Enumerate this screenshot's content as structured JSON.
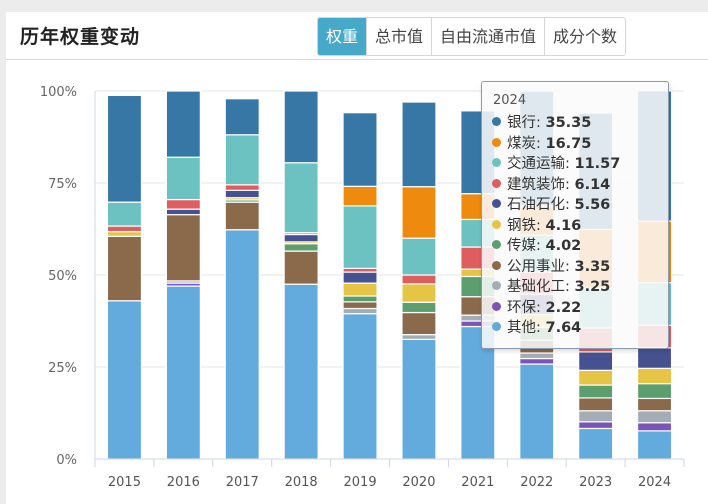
{
  "header": {
    "title": "历年权重变动",
    "tabs": [
      {
        "label": "权重",
        "active": true
      },
      {
        "label": "总市值",
        "active": false
      },
      {
        "label": "自由流通市值",
        "active": false
      },
      {
        "label": "成分个数",
        "active": false
      }
    ]
  },
  "tooltip": {
    "title": "2024",
    "rows": [
      {
        "name": "银行",
        "value": "35.35",
        "color": "#3777a6"
      },
      {
        "name": "煤炭",
        "value": "16.75",
        "color": "#ee8a0e"
      },
      {
        "name": "交通运输",
        "value": "11.57",
        "color": "#6cc2c0"
      },
      {
        "name": "建筑装饰",
        "value": "6.14",
        "color": "#df5c5f"
      },
      {
        "name": "石油石化",
        "value": "5.56",
        "color": "#465190"
      },
      {
        "name": "钢铁",
        "value": "4.16",
        "color": "#e5c446"
      },
      {
        "name": "传媒",
        "value": "4.02",
        "color": "#5c9e6e"
      },
      {
        "name": "公用事业",
        "value": "3.35",
        "color": "#8b6a4b"
      },
      {
        "name": "基础化工",
        "value": "3.25",
        "color": "#a4acb6"
      },
      {
        "name": "环保",
        "value": "2.22",
        "color": "#7b54b8"
      },
      {
        "name": "其他",
        "value": "7.64",
        "color": "#63aadd"
      }
    ]
  },
  "chart_data": {
    "type": "bar",
    "stacked": true,
    "percent": true,
    "title": "历年权重变动",
    "xlabel": "",
    "ylabel": "",
    "ylim": [
      0,
      100
    ],
    "yticks": [
      "0%",
      "25%",
      "50%",
      "75%",
      "100%"
    ],
    "grid": true,
    "categories": [
      "2015",
      "2016",
      "2017",
      "2018",
      "2019",
      "2020",
      "2021",
      "2022",
      "2023",
      "2024"
    ],
    "series": [
      {
        "name": "其他",
        "color": "#63aadd",
        "values": [
          43.0,
          47.0,
          62.3,
          47.5,
          39.5,
          32.5,
          36.0,
          25.8,
          8.3,
          7.64
        ]
      },
      {
        "name": "环保",
        "color": "#7b54b8",
        "values": [
          0,
          0.8,
          0,
          0,
          0,
          0,
          1.5,
          1.5,
          1.8,
          2.22
        ]
      },
      {
        "name": "基础化工",
        "color": "#a4acb6",
        "values": [
          0,
          0.6,
          0,
          0,
          1.4,
          1.3,
          1.6,
          1.5,
          3.0,
          3.25
        ]
      },
      {
        "name": "公用事业",
        "color": "#8b6a4b",
        "values": [
          17.5,
          18.0,
          7.5,
          9.0,
          1.8,
          6.0,
          5.0,
          3.5,
          3.5,
          3.35
        ]
      },
      {
        "name": "传媒",
        "color": "#5c9e6e",
        "values": [
          0,
          0,
          0.6,
          2.0,
          1.6,
          2.8,
          5.5,
          3.5,
          3.5,
          4.02
        ]
      },
      {
        "name": "钢铁",
        "color": "#e5c446",
        "values": [
          1.3,
          0,
          0.6,
          0.5,
          3.5,
          5.0,
          2.0,
          3.5,
          4.0,
          4.16
        ]
      },
      {
        "name": "石油石化",
        "color": "#465190",
        "values": [
          0,
          1.5,
          2.0,
          2.0,
          3.0,
          0,
          0,
          5.5,
          5.0,
          5.56
        ]
      },
      {
        "name": "建筑装饰",
        "color": "#df5c5f",
        "values": [
          1.5,
          2.6,
          1.5,
          0.5,
          1.0,
          2.4,
          6.0,
          6.0,
          6.5,
          6.14
        ]
      },
      {
        "name": "交通运输",
        "color": "#6cc2c0",
        "values": [
          6.5,
          11.5,
          13.6,
          19.0,
          17.0,
          10.0,
          7.5,
          10.0,
          10.8,
          11.57
        ]
      },
      {
        "name": "煤炭",
        "color": "#ee8a0e",
        "values": [
          0,
          0,
          0,
          0,
          5.3,
          14.0,
          7.0,
          8.0,
          16.0,
          16.75
        ]
      },
      {
        "name": "银行",
        "color": "#3777a6",
        "values": [
          29.0,
          18.0,
          9.8,
          19.5,
          20.0,
          23.0,
          22.5,
          31.2,
          31.6,
          35.35
        ]
      }
    ],
    "tooltip_category": "2024",
    "legend": "none"
  }
}
